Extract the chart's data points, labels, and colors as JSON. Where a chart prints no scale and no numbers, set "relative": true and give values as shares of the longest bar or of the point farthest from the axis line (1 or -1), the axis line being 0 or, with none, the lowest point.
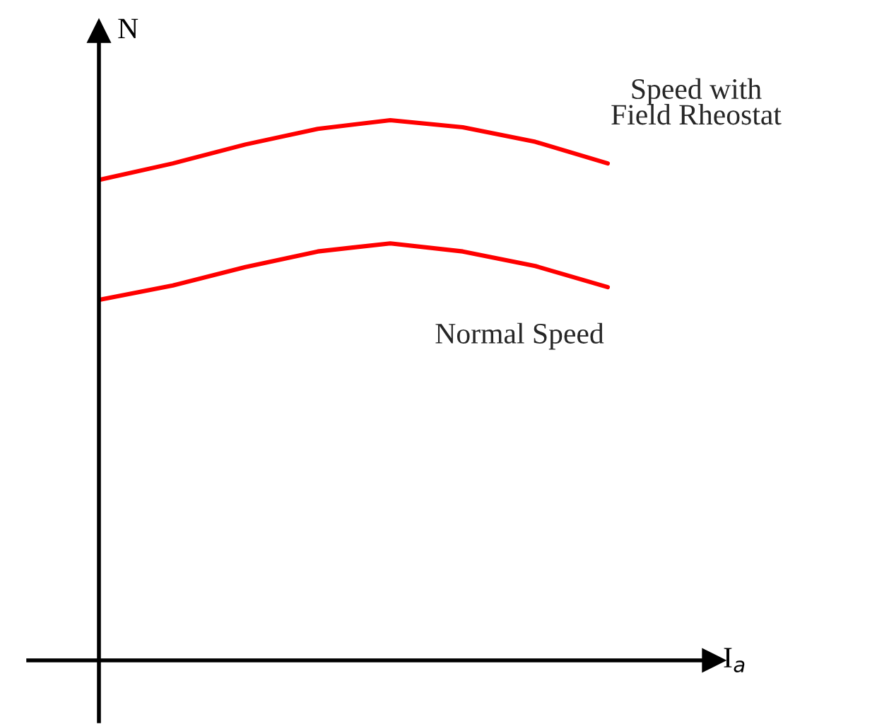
{
  "chart_data": {
    "type": "line",
    "relative": true,
    "xlabel": "I$_{a}$",
    "ylabel": "N",
    "categories": [
      null,
      null,
      null,
      null,
      null,
      null,
      null,
      null
    ],
    "series": [
      {
        "name": "Speed with\nField Rheostat",
        "color": "#ff0000",
        "values": [
          0.89,
          0.92,
          0.955,
          0.984,
          1.0,
          0.987,
          0.96,
          0.92
        ]
      },
      {
        "name": "Normal Speed",
        "color": "#ff0000",
        "values": [
          0.668,
          0.694,
          0.728,
          0.757,
          0.772,
          0.757,
          0.73,
          0.691
        ]
      }
    ],
    "legend": false,
    "marker": "none",
    "line_style": "solid"
  }
}
